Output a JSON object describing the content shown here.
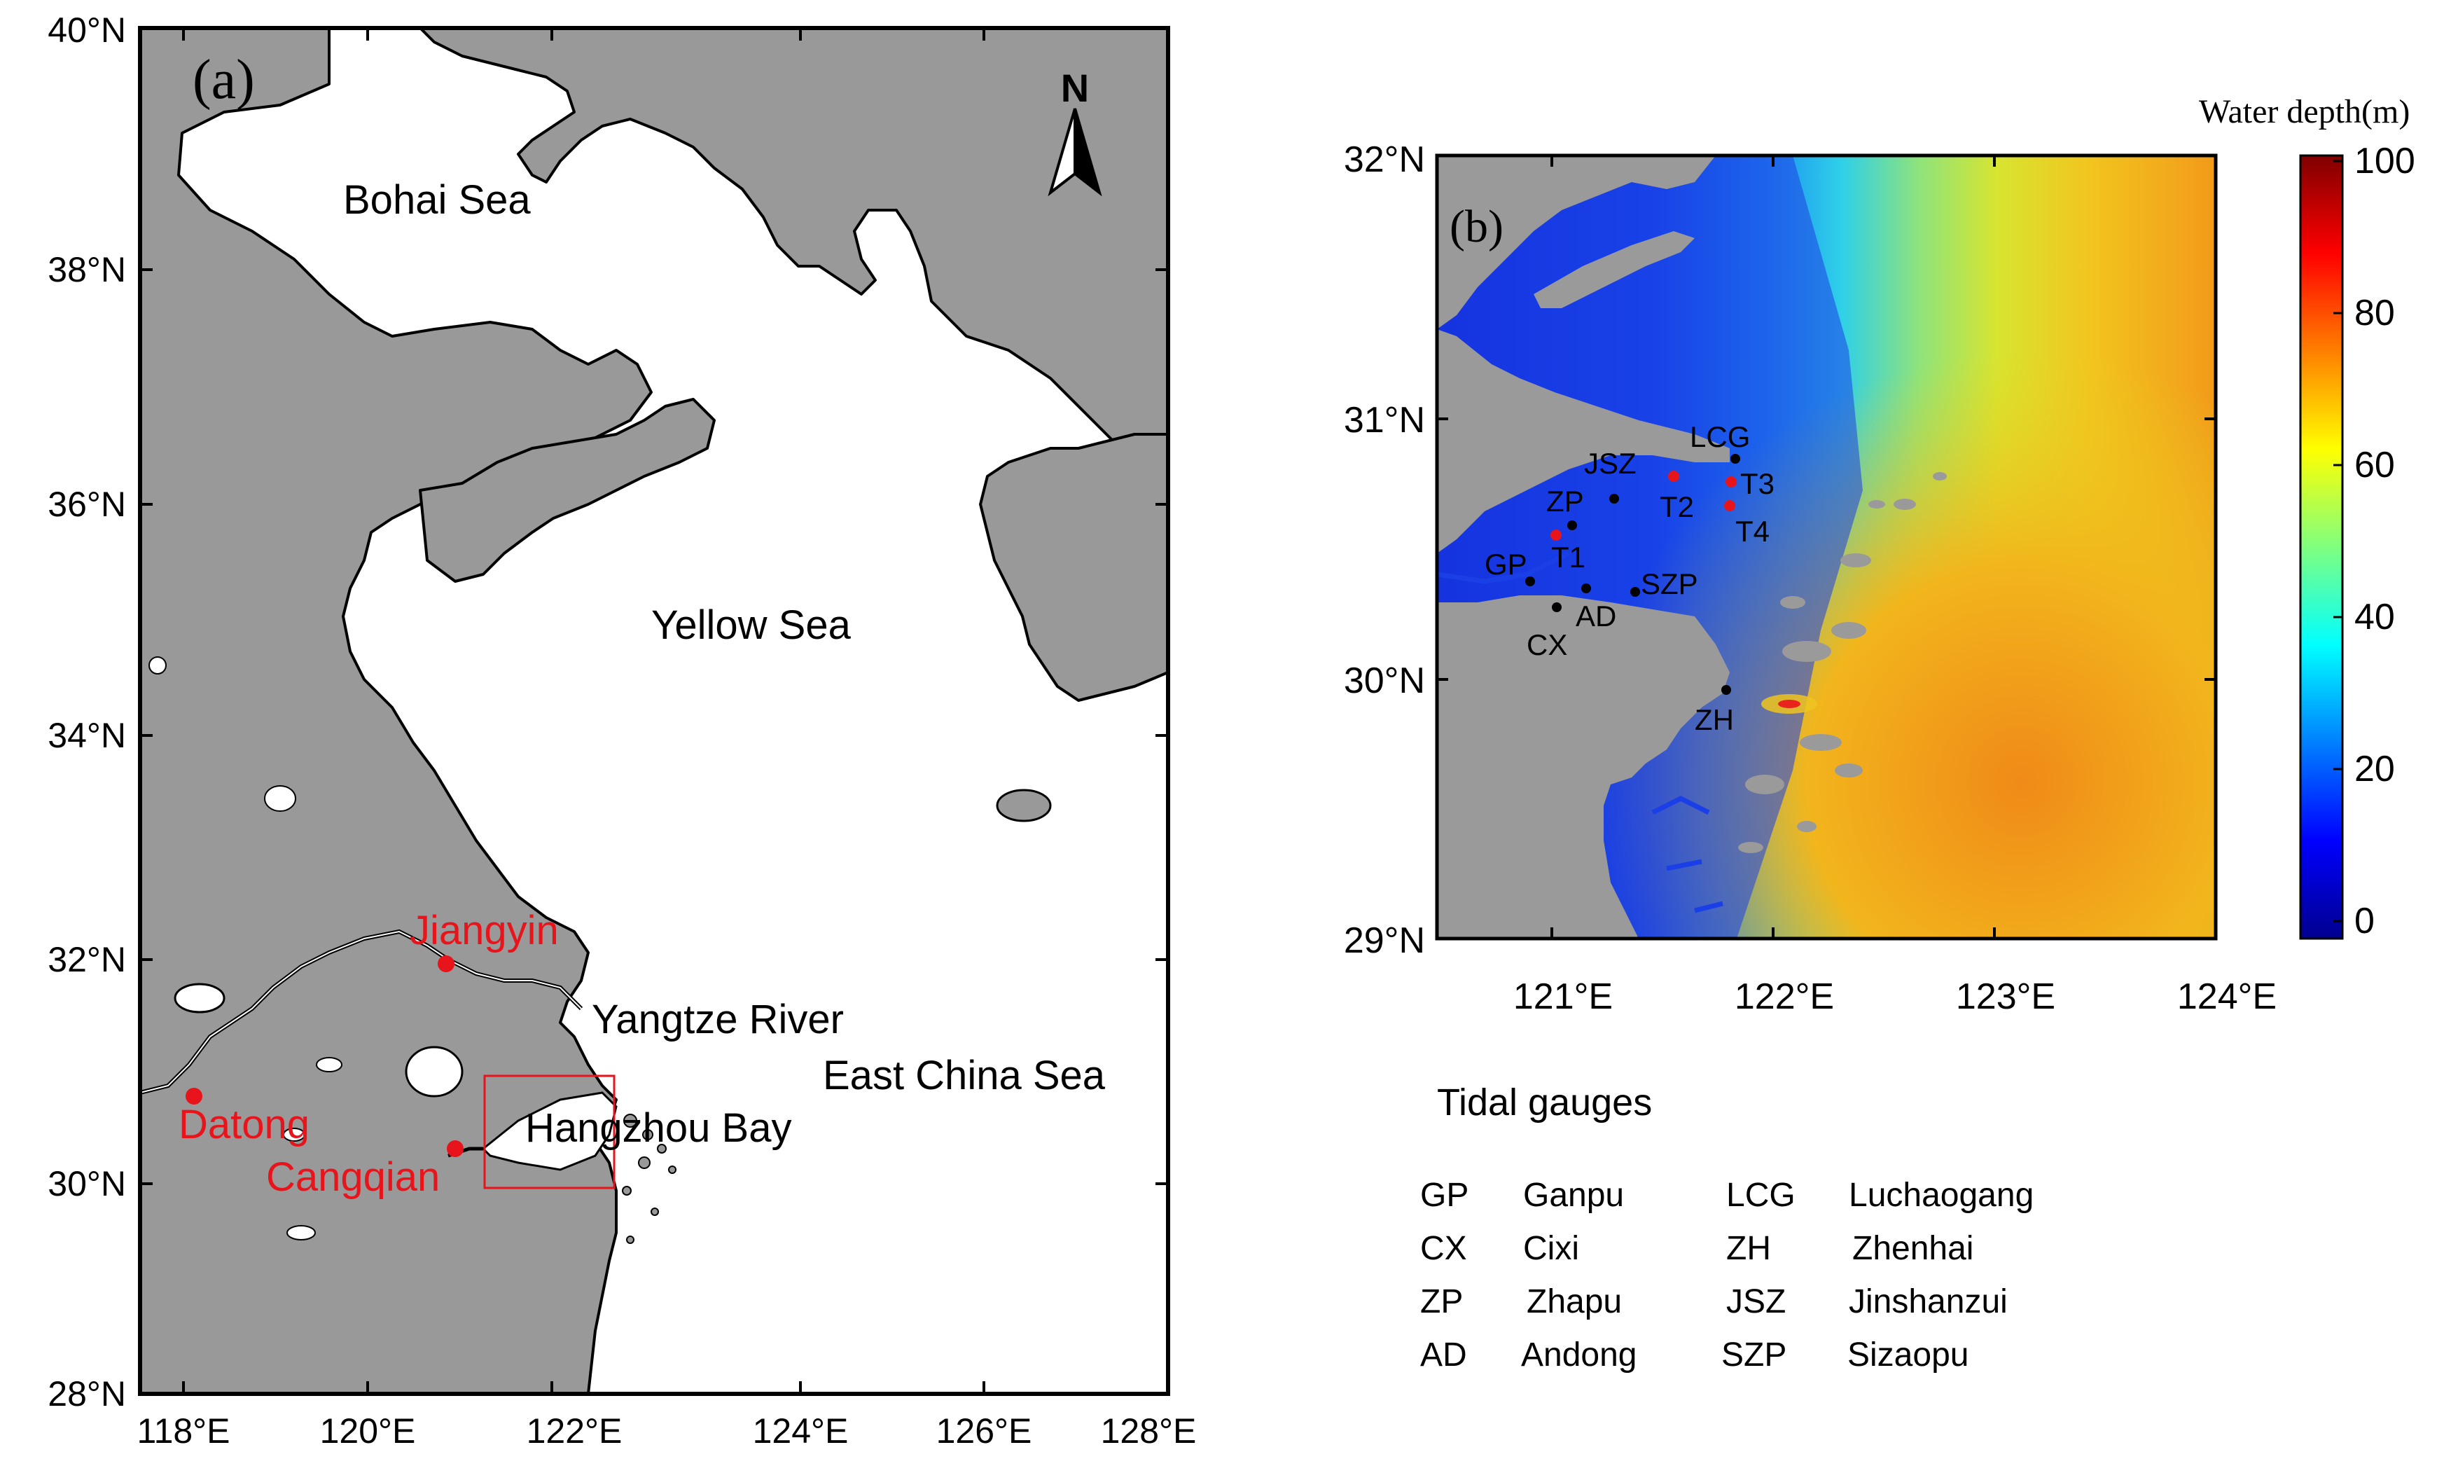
{
  "panel_a": {
    "label": "(a)",
    "north_label": "N",
    "lat_ticks": [
      "40°N",
      "38°N",
      "36°N",
      "34°N",
      "32°N",
      "30°N",
      "28°N"
    ],
    "lon_ticks": [
      "118°E",
      "120°E",
      "122°E",
      "124°E",
      "126°E",
      "128°E"
    ],
    "seas": {
      "bohai": "Bohai Sea",
      "yellow": "Yellow Sea",
      "yangtze": "Yangtze River",
      "east_china": "East China Sea",
      "hangzhou": "Hangzhou Bay"
    },
    "stations": [
      {
        "id": "jiangyin",
        "label": "Jiangyin",
        "lon": 120.3,
        "lat": 31.9
      },
      {
        "id": "datong",
        "label": "Datong",
        "lon": 117.6,
        "lat": 30.8
      },
      {
        "id": "cangqian",
        "label": "Cangqian",
        "lon": 120.4,
        "lat": 30.3
      }
    ],
    "station_color": "#e8141c",
    "land_color": "#989898"
  },
  "panel_b": {
    "label": "(b)",
    "lat_ticks": [
      "32°N",
      "31°N",
      "30°N",
      "29°N"
    ],
    "lon_ticks": [
      "121°E",
      "122°E",
      "123°E",
      "124°E"
    ],
    "colorbar": {
      "title": "Water depth(m)",
      "ticks": [
        "100",
        "80",
        "60",
        "40",
        "20",
        "0"
      ]
    },
    "gauges": [
      {
        "code": "LCG",
        "lon": 121.83,
        "lat": 30.85
      },
      {
        "code": "JSZ",
        "lon": 121.3,
        "lat": 30.7
      },
      {
        "code": "ZP",
        "lon": 121.1,
        "lat": 30.6
      },
      {
        "code": "GP",
        "lon": 120.9,
        "lat": 30.38
      },
      {
        "code": "CX",
        "lon": 121.03,
        "lat": 30.28
      },
      {
        "code": "AD",
        "lon": 121.15,
        "lat": 30.36
      },
      {
        "code": "SZP",
        "lon": 121.38,
        "lat": 30.34
      },
      {
        "code": "ZH",
        "lon": 121.72,
        "lat": 29.96
      }
    ],
    "stations_t": [
      {
        "code": "T1",
        "lon": 121.02,
        "lat": 30.55
      },
      {
        "code": "T2",
        "lon": 121.55,
        "lat": 30.78
      },
      {
        "code": "T3",
        "lon": 121.82,
        "lat": 30.76
      },
      {
        "code": "T4",
        "lon": 121.81,
        "lat": 30.66
      }
    ]
  },
  "legend": {
    "title": "Tidal gauges",
    "entries": [
      {
        "code": "GP",
        "name": "Ganpu"
      },
      {
        "code": "CX",
        "name": "Cixi"
      },
      {
        "code": "ZP",
        "name": "Zhapu"
      },
      {
        "code": "AD",
        "name": "Andong"
      },
      {
        "code": "LCG",
        "name": "Luchaogang"
      },
      {
        "code": "ZH",
        "name": "Zhenhai"
      },
      {
        "code": "JSZ",
        "name": "Jinshanzui"
      },
      {
        "code": "SZP",
        "name": "Sizaopu"
      }
    ]
  }
}
